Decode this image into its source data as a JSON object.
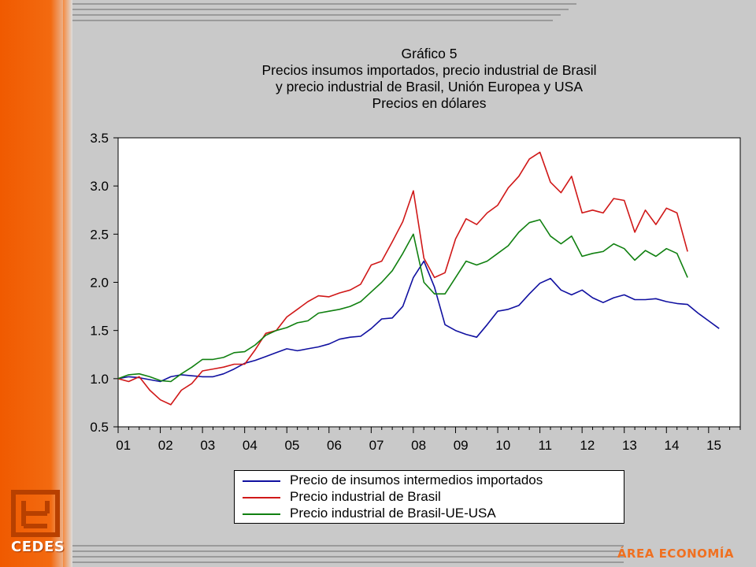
{
  "title_lines": [
    "Gráfico 5",
    "Precios insumos importados, precio industrial de Brasil",
    "y precio industrial de Brasil, Unión Europea y USA",
    "Precios en dólares"
  ],
  "branding": {
    "logo_text": "CEDES",
    "area_label": "ÁREA ECONOMÍA"
  },
  "colors": {
    "accent": "#f05a00",
    "series_blue": "#1010a0",
    "series_red": "#d01818",
    "series_green": "#108010"
  },
  "chart_data": {
    "type": "line",
    "ylim": [
      0.5,
      3.5
    ],
    "yticks": [
      0.5,
      1.0,
      1.5,
      2.0,
      2.5,
      3.0,
      3.5
    ],
    "ytick_labels": [
      "0.5",
      "1.0",
      "1.5",
      "2.0",
      "2.5",
      "3.0",
      "3.5"
    ],
    "xlim": [
      2001.0,
      2015.75
    ],
    "xtick_labels": [
      "01",
      "02",
      "03",
      "04",
      "05",
      "06",
      "07",
      "08",
      "09",
      "10",
      "11",
      "12",
      "13",
      "14",
      "15"
    ],
    "grid": false,
    "legend_position": "bottom",
    "series": [
      {
        "name": "Precio de insumos intermedios importados",
        "color": "#1010a0",
        "x": [
          2001.0,
          2001.25,
          2001.5,
          2001.75,
          2002.0,
          2002.25,
          2002.5,
          2002.75,
          2003.0,
          2003.25,
          2003.5,
          2003.75,
          2004.0,
          2004.25,
          2004.5,
          2004.75,
          2005.0,
          2005.25,
          2005.5,
          2005.75,
          2006.0,
          2006.25,
          2006.5,
          2006.75,
          2007.0,
          2007.25,
          2007.5,
          2007.75,
          2008.0,
          2008.25,
          2008.5,
          2008.75,
          2009.0,
          2009.25,
          2009.5,
          2009.75,
          2010.0,
          2010.25,
          2010.5,
          2010.75,
          2011.0,
          2011.25,
          2011.5,
          2011.75,
          2012.0,
          2012.25,
          2012.5,
          2012.75,
          2013.0,
          2013.25,
          2013.5,
          2013.75,
          2014.0,
          2014.25,
          2014.5,
          2014.75,
          2015.0,
          2015.25
        ],
        "y": [
          1.0,
          1.02,
          1.01,
          0.99,
          0.97,
          1.02,
          1.04,
          1.03,
          1.02,
          1.02,
          1.05,
          1.1,
          1.16,
          1.19,
          1.23,
          1.27,
          1.31,
          1.29,
          1.31,
          1.33,
          1.36,
          1.41,
          1.43,
          1.44,
          1.52,
          1.62,
          1.63,
          1.75,
          2.05,
          2.22,
          1.95,
          1.56,
          1.5,
          1.46,
          1.43,
          1.56,
          1.7,
          1.72,
          1.76,
          1.88,
          1.99,
          2.04,
          1.92,
          1.87,
          1.92,
          1.84,
          1.79,
          1.84,
          1.87,
          1.82,
          1.82,
          1.83,
          1.8,
          1.78,
          1.77,
          1.68,
          1.6,
          1.52
        ]
      },
      {
        "name": "Precio industrial de Brasil",
        "color": "#d01818",
        "x": [
          2001.0,
          2001.25,
          2001.5,
          2001.75,
          2002.0,
          2002.25,
          2002.5,
          2002.75,
          2003.0,
          2003.25,
          2003.5,
          2003.75,
          2004.0,
          2004.25,
          2004.5,
          2004.75,
          2005.0,
          2005.25,
          2005.5,
          2005.75,
          2006.0,
          2006.25,
          2006.5,
          2006.75,
          2007.0,
          2007.25,
          2007.5,
          2007.75,
          2008.0,
          2008.25,
          2008.5,
          2008.75,
          2009.0,
          2009.25,
          2009.5,
          2009.75,
          2010.0,
          2010.25,
          2010.5,
          2010.75,
          2011.0,
          2011.25,
          2011.5,
          2011.75,
          2012.0,
          2012.25,
          2012.5,
          2012.75,
          2013.0,
          2013.25,
          2013.5,
          2013.75,
          2014.0,
          2014.25,
          2014.5
        ],
        "y": [
          1.0,
          0.97,
          1.02,
          0.88,
          0.78,
          0.73,
          0.88,
          0.95,
          1.08,
          1.1,
          1.12,
          1.15,
          1.15,
          1.3,
          1.47,
          1.5,
          1.64,
          1.72,
          1.8,
          1.86,
          1.85,
          1.89,
          1.92,
          1.98,
          2.18,
          2.22,
          2.42,
          2.63,
          2.95,
          2.25,
          2.05,
          2.1,
          2.45,
          2.66,
          2.6,
          2.72,
          2.8,
          2.98,
          3.1,
          3.28,
          3.35,
          3.04,
          2.93,
          3.1,
          2.72,
          2.75,
          2.72,
          2.87,
          2.85,
          2.52,
          2.75,
          2.6,
          2.77,
          2.72,
          2.32
        ]
      },
      {
        "name": "Precio industrial de Brasil-UE-USA",
        "color": "#108010",
        "x": [
          2001.0,
          2001.25,
          2001.5,
          2001.75,
          2002.0,
          2002.25,
          2002.5,
          2002.75,
          2003.0,
          2003.25,
          2003.5,
          2003.75,
          2004.0,
          2004.25,
          2004.5,
          2004.75,
          2005.0,
          2005.25,
          2005.5,
          2005.75,
          2006.0,
          2006.25,
          2006.5,
          2006.75,
          2007.0,
          2007.25,
          2007.5,
          2007.75,
          2008.0,
          2008.25,
          2008.5,
          2008.75,
          2009.0,
          2009.25,
          2009.5,
          2009.75,
          2010.0,
          2010.25,
          2010.5,
          2010.75,
          2011.0,
          2011.25,
          2011.5,
          2011.75,
          2012.0,
          2012.25,
          2012.5,
          2012.75,
          2013.0,
          2013.25,
          2013.5,
          2013.75,
          2014.0,
          2014.25,
          2014.5
        ],
        "y": [
          1.0,
          1.04,
          1.05,
          1.02,
          0.98,
          0.97,
          1.05,
          1.12,
          1.2,
          1.2,
          1.22,
          1.27,
          1.28,
          1.35,
          1.45,
          1.5,
          1.53,
          1.58,
          1.6,
          1.68,
          1.7,
          1.72,
          1.75,
          1.8,
          1.9,
          2.0,
          2.12,
          2.3,
          2.5,
          2.0,
          1.88,
          1.88,
          2.05,
          2.22,
          2.18,
          2.22,
          2.3,
          2.38,
          2.52,
          2.62,
          2.65,
          2.48,
          2.4,
          2.48,
          2.27,
          2.3,
          2.32,
          2.4,
          2.35,
          2.23,
          2.33,
          2.27,
          2.35,
          2.3,
          2.05
        ]
      }
    ]
  }
}
